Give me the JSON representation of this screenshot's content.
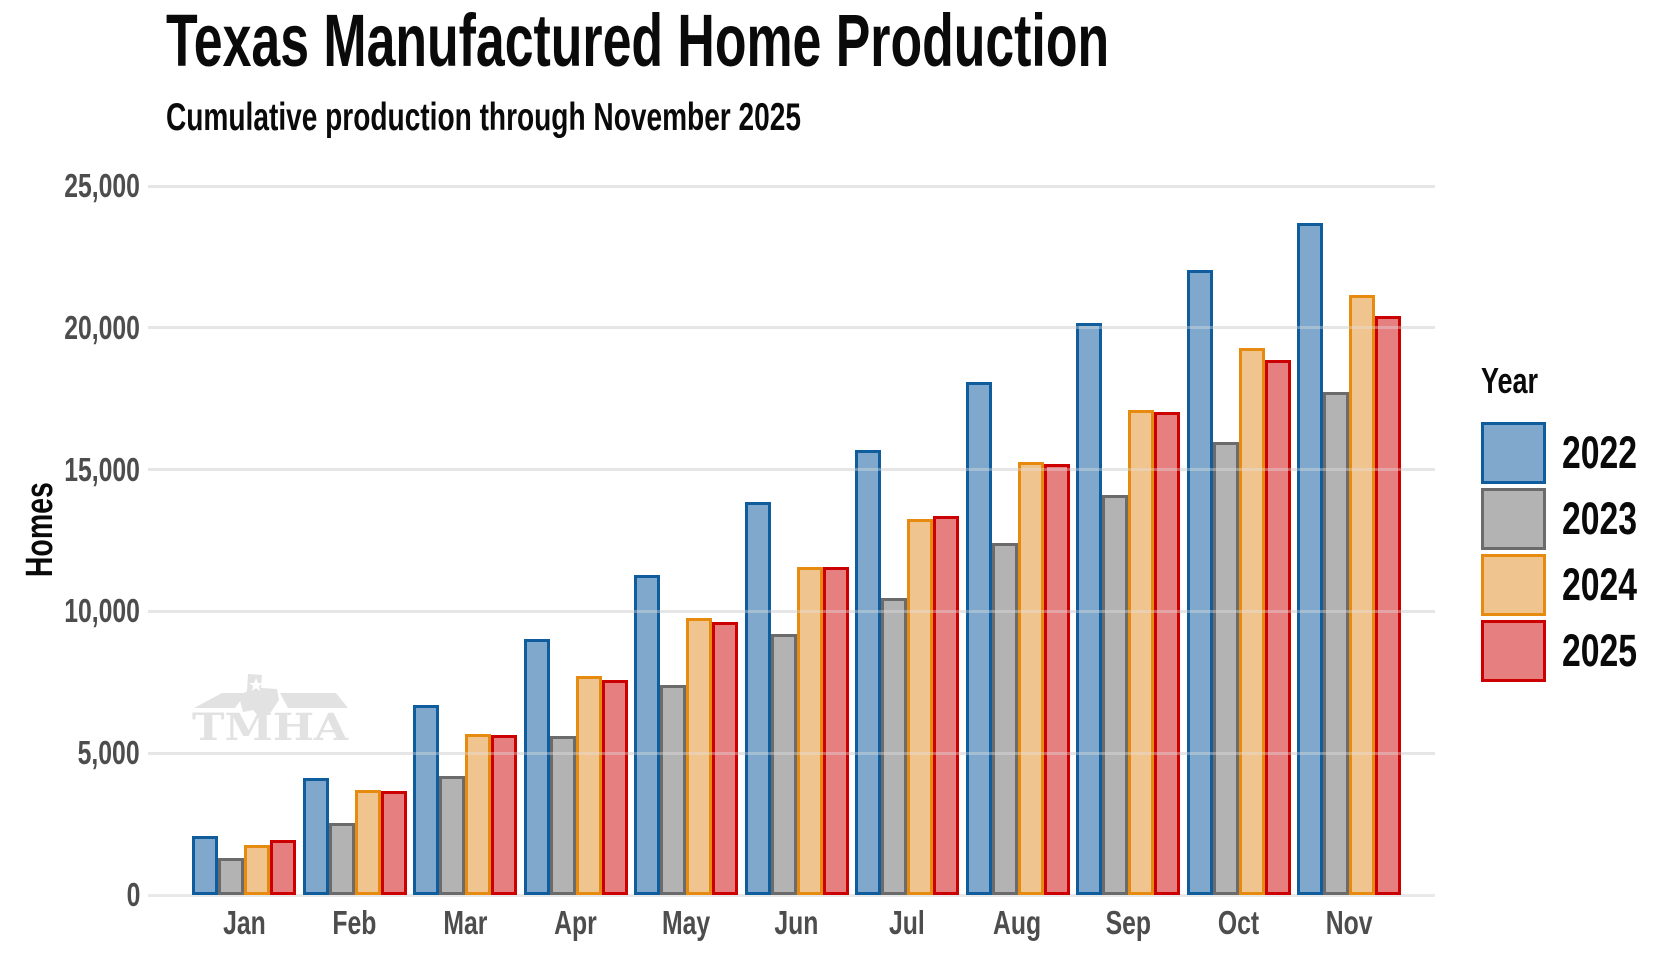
{
  "header": {
    "title": "Texas Manufactured Home Production",
    "subtitle": "Cumulative production through November 2025"
  },
  "watermark": {
    "text": "TMHA"
  },
  "legend": {
    "title": "Year"
  },
  "chart_data": {
    "type": "bar",
    "title": "Texas Manufactured Home Production",
    "subtitle": "Cumulative production through November 2025",
    "xlabel": "",
    "ylabel": "Homes",
    "ylim": [
      0,
      25000
    ],
    "ytick_interval": 5000,
    "yticks": [
      "0",
      "5,000",
      "10,000",
      "15,000",
      "20,000",
      "25,000"
    ],
    "grid": true,
    "legend_position": "right",
    "legend_title": "Year",
    "categories": [
      "Jan",
      "Feb",
      "Mar",
      "Apr",
      "May",
      "Jun",
      "Jul",
      "Aug",
      "Sep",
      "Oct",
      "Nov"
    ],
    "series": [
      {
        "name": "2022",
        "fill": "#7FA8CC",
        "border": "#0F5D9C",
        "values": [
          2080,
          4110,
          6690,
          9010,
          11300,
          13840,
          15700,
          18100,
          20170,
          22030,
          23680
        ]
      },
      {
        "name": "2023",
        "fill": "#B3B3B3",
        "border": "#6B6B6B",
        "values": [
          1320,
          2540,
          4190,
          5620,
          7400,
          9190,
          10480,
          12410,
          14090,
          15990,
          17740
        ]
      },
      {
        "name": "2024",
        "fill": "#F0C48E",
        "border": "#E68A10",
        "values": [
          1750,
          3720,
          5690,
          7730,
          9770,
          11550,
          13270,
          15270,
          17100,
          19280,
          21140
        ]
      },
      {
        "name": "2025",
        "fill": "#E57F80",
        "border": "#CC0000",
        "values": [
          1930,
          3680,
          5650,
          7580,
          9620,
          11550,
          13380,
          15200,
          17030,
          18850,
          20430
        ]
      }
    ]
  },
  "colors": {
    "background": "#FFFFFF",
    "grid": "#E9E9E9",
    "tick_text": "#4D4D4D",
    "title_text": "#0A0A0A",
    "watermark": "#E2E2E2"
  }
}
